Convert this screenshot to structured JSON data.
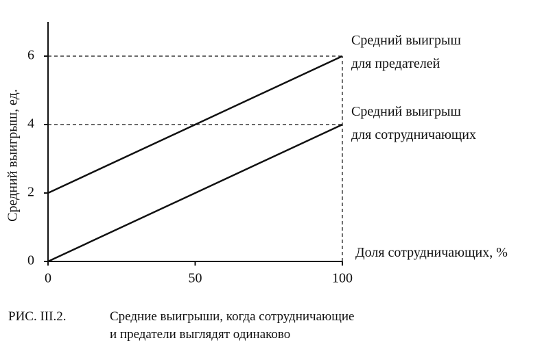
{
  "chart_data": {
    "type": "line",
    "x": [
      0,
      100
    ],
    "series": [
      {
        "name": "Средний выигрыш\nдля предателей",
        "color": "#111111",
        "values": [
          2,
          6
        ]
      },
      {
        "name": "Средний выигрыш\nдля сотрудничающих",
        "color": "#111111",
        "values": [
          0,
          4
        ]
      }
    ],
    "xlabel": "Доля сотрудничающих, %",
    "ylabel": "Средний выигрыш, ед.",
    "xlim": [
      0,
      100
    ],
    "xticks": [
      0,
      50,
      100
    ],
    "ylim": [
      0,
      7
    ],
    "yticks": [
      0,
      2,
      4,
      6
    ],
    "figure_label": "РИС. III.2.",
    "caption": "Средние выигрыши, когда сотрудничающие\nи предатели выглядят одинаково"
  }
}
